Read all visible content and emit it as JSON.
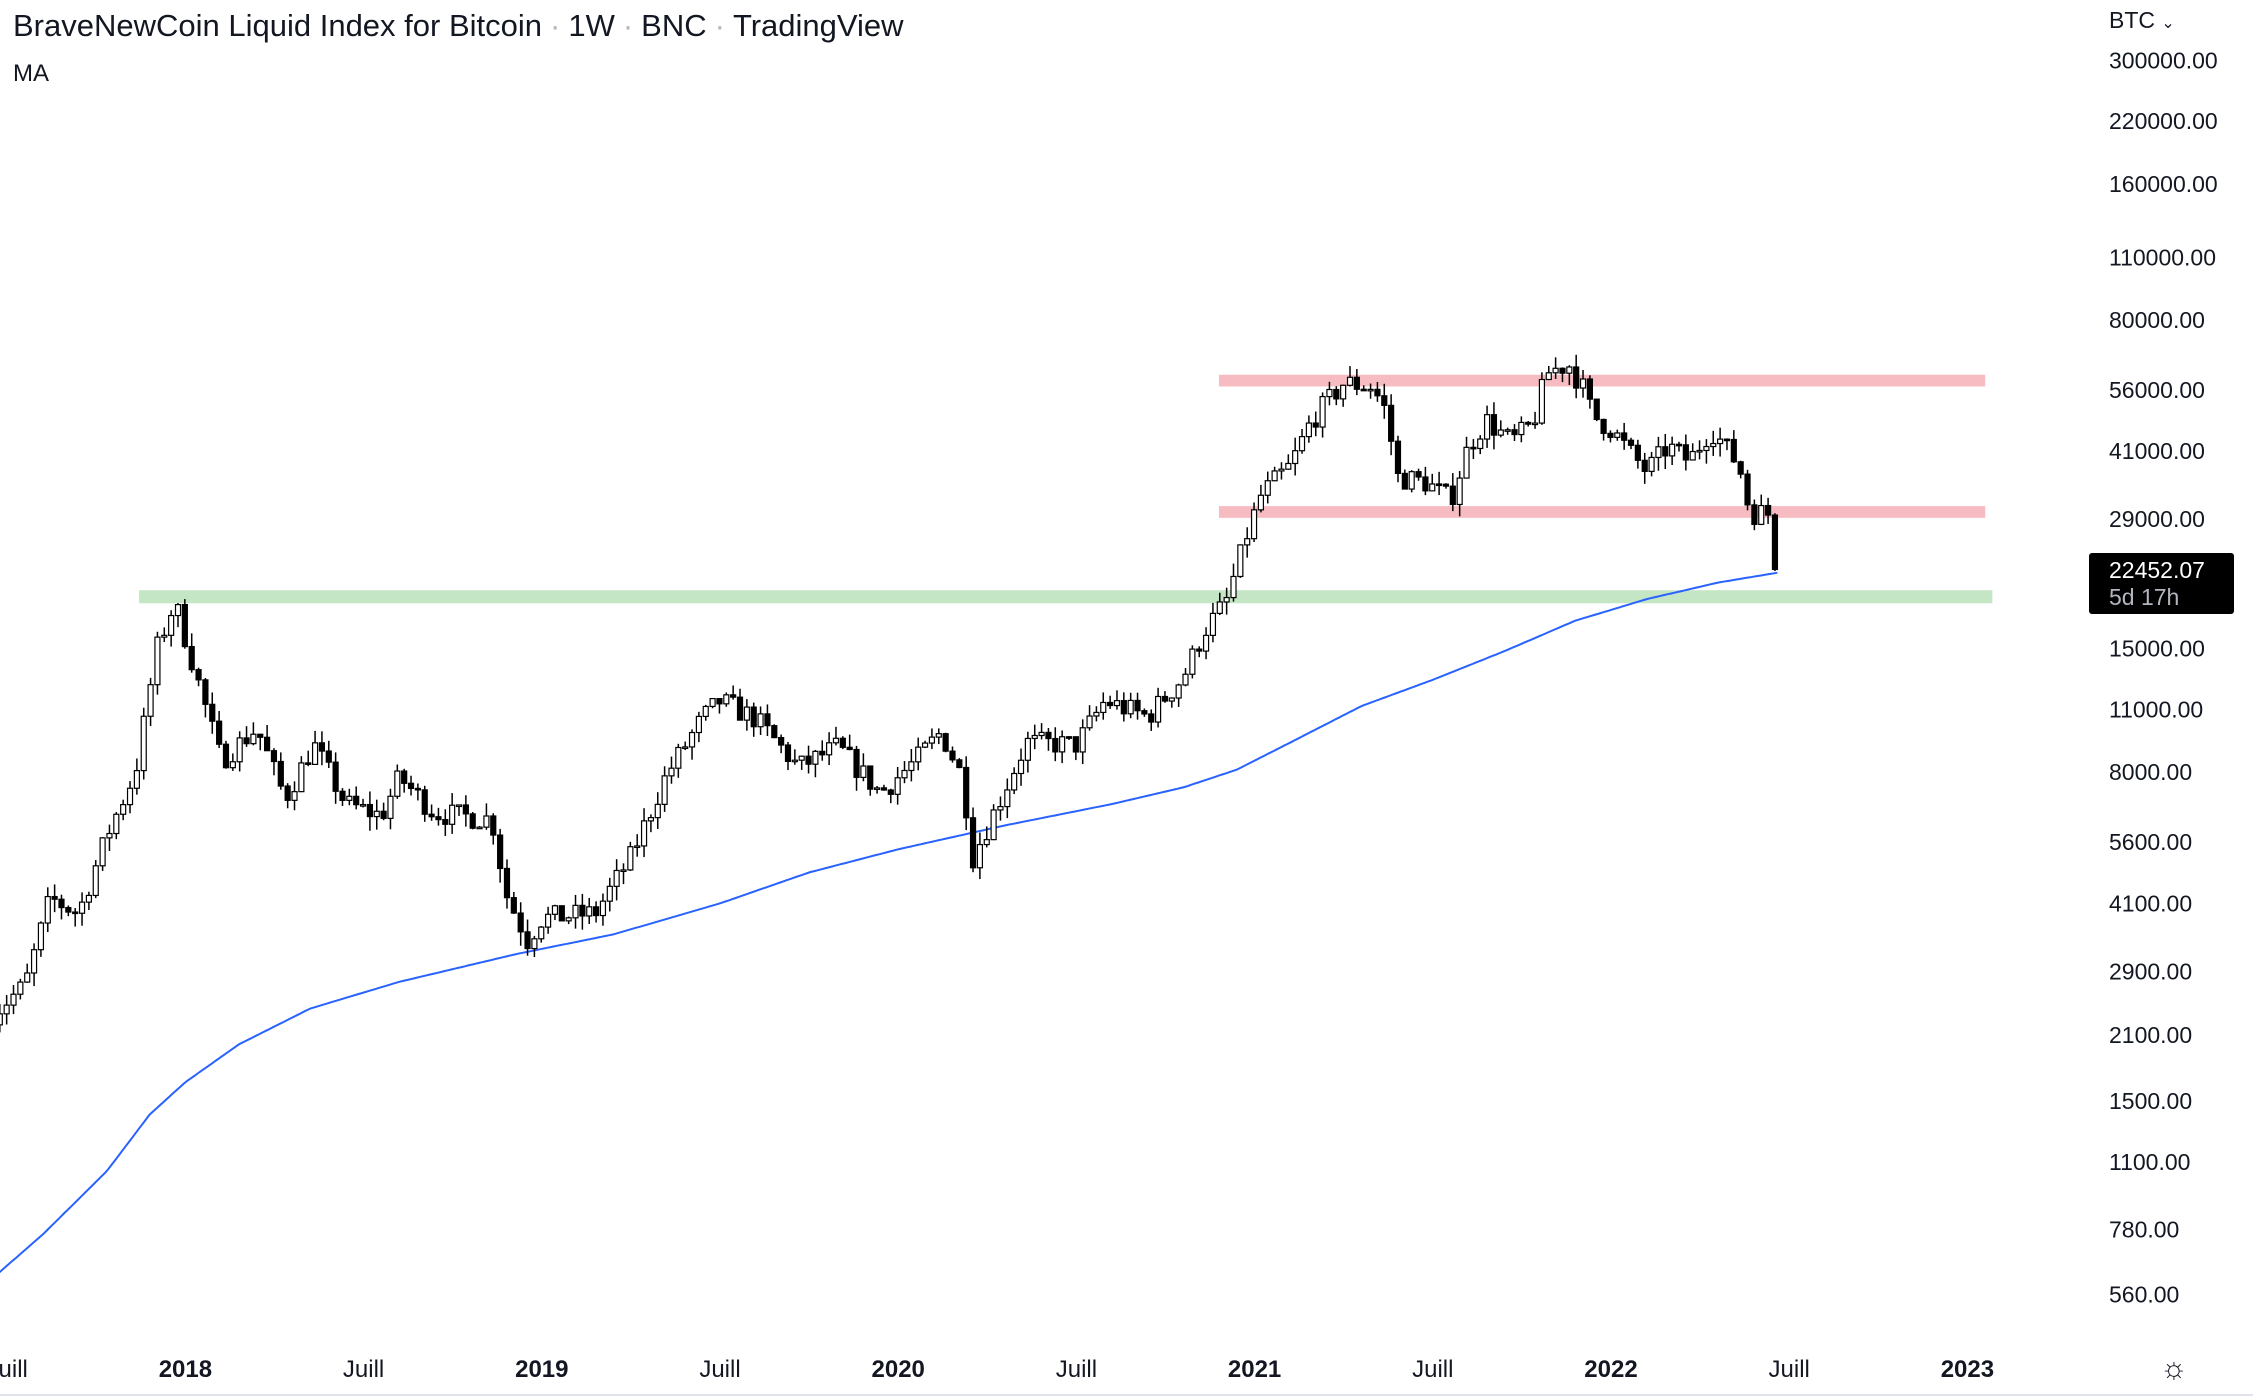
{
  "header": {
    "symbol": "BraveNewCoin Liquid Index for Bitcoin",
    "interval": "1W",
    "exchange": "BNC",
    "source": "TradingView",
    "indicator": "MA"
  },
  "price_scale": {
    "currency": "BTC",
    "current_price": "22452.07",
    "countdown": "5d 17h"
  },
  "settings_icon": "gear-icon",
  "chart_data": {
    "type": "candlestick",
    "scale": "log",
    "title": "BraveNewCoin Liquid Index for Bitcoin · 1W · BNC",
    "ylim": [
      470,
      330000
    ],
    "xlim": [
      2017.44,
      2023.35
    ],
    "y_ticks": [
      "300000.00",
      "220000.00",
      "160000.00",
      "110000.00",
      "80000.00",
      "56000.00",
      "41000.00",
      "29000.00",
      "15000.00",
      "11000.00",
      "8000.00",
      "5600.00",
      "4100.00",
      "2900.00",
      "2100.00",
      "1500.00",
      "1100.00",
      "780.00",
      "560.00"
    ],
    "x_ticks": [
      {
        "t": 2017.5,
        "label": "Juill",
        "year": false
      },
      {
        "t": 2018.0,
        "label": "2018",
        "year": true
      },
      {
        "t": 2018.5,
        "label": "Juill",
        "year": false
      },
      {
        "t": 2019.0,
        "label": "2019",
        "year": true
      },
      {
        "t": 2019.5,
        "label": "Juill",
        "year": false
      },
      {
        "t": 2020.0,
        "label": "2020",
        "year": true
      },
      {
        "t": 2020.5,
        "label": "Juill",
        "year": false
      },
      {
        "t": 2021.0,
        "label": "2021",
        "year": true
      },
      {
        "t": 2021.5,
        "label": "Juill",
        "year": false
      },
      {
        "t": 2022.0,
        "label": "2022",
        "year": true
      },
      {
        "t": 2022.5,
        "label": "Juill",
        "year": false
      },
      {
        "t": 2023.0,
        "label": "2023",
        "year": true
      }
    ],
    "price_path": [
      [
        2017.46,
        2350
      ],
      [
        2017.55,
        2700
      ],
      [
        2017.62,
        4200
      ],
      [
        2017.7,
        3900
      ],
      [
        2017.78,
        5800
      ],
      [
        2017.86,
        8000
      ],
      [
        2017.92,
        15000
      ],
      [
        2017.97,
        19000
      ],
      [
        2018.02,
        14000
      ],
      [
        2018.1,
        8500
      ],
      [
        2018.2,
        10000
      ],
      [
        2018.28,
        7000
      ],
      [
        2018.36,
        9200
      ],
      [
        2018.45,
        6800
      ],
      [
        2018.55,
        6400
      ],
      [
        2018.6,
        7800
      ],
      [
        2018.7,
        6500
      ],
      [
        2018.86,
        6300
      ],
      [
        2018.9,
        4300
      ],
      [
        2018.96,
        3400
      ],
      [
        2019.0,
        3800
      ],
      [
        2019.15,
        3900
      ],
      [
        2019.25,
        5200
      ],
      [
        2019.35,
        7900
      ],
      [
        2019.45,
        10500
      ],
      [
        2019.5,
        11500
      ],
      [
        2019.6,
        10500
      ],
      [
        2019.72,
        8200
      ],
      [
        2019.83,
        9100
      ],
      [
        2019.95,
        7200
      ],
      [
        2020.05,
        8500
      ],
      [
        2020.12,
        9800
      ],
      [
        2020.18,
        7800
      ],
      [
        2020.21,
        5200
      ],
      [
        2020.28,
        6800
      ],
      [
        2020.36,
        9300
      ],
      [
        2020.5,
        9200
      ],
      [
        2020.58,
        11500
      ],
      [
        2020.7,
        10600
      ],
      [
        2020.8,
        13000
      ],
      [
        2020.86,
        16500
      ],
      [
        2020.92,
        19000
      ],
      [
        2020.98,
        27000
      ],
      [
        2021.02,
        33000
      ],
      [
        2021.1,
        38000
      ],
      [
        2021.16,
        48000
      ],
      [
        2021.25,
        58000
      ],
      [
        2021.33,
        57000
      ],
      [
        2021.37,
        50000
      ],
      [
        2021.4,
        36000
      ],
      [
        2021.48,
        35000
      ],
      [
        2021.55,
        32000
      ],
      [
        2021.6,
        42000
      ],
      [
        2021.65,
        48000
      ],
      [
        2021.72,
        43000
      ],
      [
        2021.78,
        47000
      ],
      [
        2021.82,
        61000
      ],
      [
        2021.88,
        64000
      ],
      [
        2021.92,
        57000
      ],
      [
        2021.95,
        49000
      ],
      [
        2022.0,
        46000
      ],
      [
        2022.05,
        41000
      ],
      [
        2022.1,
        37000
      ],
      [
        2022.16,
        42000
      ],
      [
        2022.22,
        39000
      ],
      [
        2022.28,
        46000
      ],
      [
        2022.32,
        42000
      ],
      [
        2022.36,
        38000
      ],
      [
        2022.39,
        30000
      ],
      [
        2022.43,
        30000
      ],
      [
        2022.46,
        29500
      ],
      [
        2022.47,
        22452
      ]
    ],
    "moving_average": {
      "name": "MA",
      "color": "#2962ff",
      "path": [
        [
          2017.44,
          590
        ],
        [
          2017.6,
          760
        ],
        [
          2017.78,
          1050
        ],
        [
          2017.9,
          1400
        ],
        [
          2018.0,
          1650
        ],
        [
          2018.15,
          2000
        ],
        [
          2018.35,
          2400
        ],
        [
          2018.6,
          2750
        ],
        [
          2018.93,
          3170
        ],
        [
          2019.2,
          3500
        ],
        [
          2019.5,
          4100
        ],
        [
          2019.75,
          4800
        ],
        [
          2020.0,
          5400
        ],
        [
          2020.3,
          6100
        ],
        [
          2020.6,
          6800
        ],
        [
          2020.8,
          7400
        ],
        [
          2020.95,
          8100
        ],
        [
          2021.1,
          9300
        ],
        [
          2021.3,
          11200
        ],
        [
          2021.5,
          12800
        ],
        [
          2021.7,
          14800
        ],
        [
          2021.9,
          17300
        ],
        [
          2022.1,
          19300
        ],
        [
          2022.3,
          21000
        ],
        [
          2022.47,
          22100
        ]
      ]
    },
    "zones": [
      {
        "name": "resistance-top",
        "low": 57000,
        "high": 60500,
        "from": 2020.9,
        "to": 2023.05,
        "color": "#f7bcc2"
      },
      {
        "name": "resistance-mid",
        "low": 29200,
        "high": 31000,
        "from": 2020.9,
        "to": 2023.05,
        "color": "#f7bcc2"
      },
      {
        "name": "support",
        "low": 18900,
        "high": 20200,
        "from": 2017.87,
        "to": 2023.07,
        "color": "#c4e6c5"
      }
    ]
  }
}
